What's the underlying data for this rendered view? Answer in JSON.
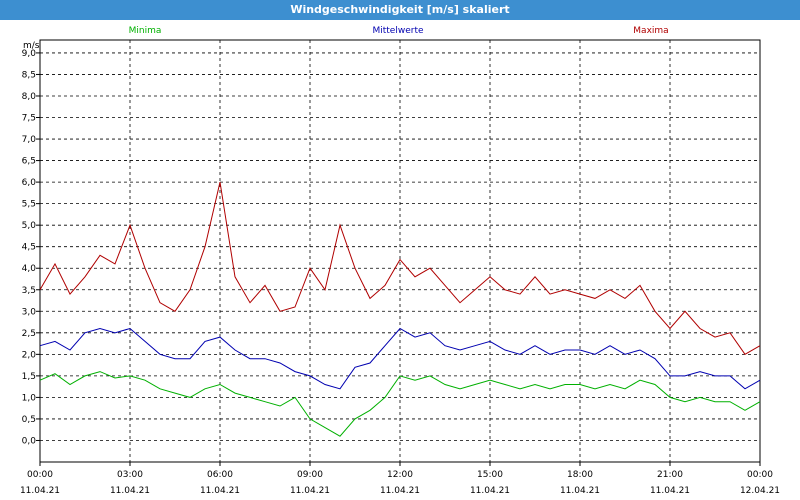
{
  "window": {
    "title": "Windgeschwindigkeit [m/s] skaliert"
  },
  "chart_data": {
    "type": "line",
    "title": "Windgeschwindigkeit [m/s] skaliert",
    "ylabel": "m/s",
    "xlabel": "",
    "ylim": [
      -0.5,
      9.3
    ],
    "grid": true,
    "legend_position": "top",
    "y_ticks": [
      {
        "value": 0.0,
        "label": "0,0"
      },
      {
        "value": 0.5,
        "label": "0,5"
      },
      {
        "value": 1.0,
        "label": "1,0"
      },
      {
        "value": 1.5,
        "label": "1,5"
      },
      {
        "value": 2.0,
        "label": "2,0"
      },
      {
        "value": 2.5,
        "label": "2,5"
      },
      {
        "value": 3.0,
        "label": "3,0"
      },
      {
        "value": 3.5,
        "label": "3,5"
      },
      {
        "value": 4.0,
        "label": "4,0"
      },
      {
        "value": 4.5,
        "label": "4,5"
      },
      {
        "value": 5.0,
        "label": "5,0"
      },
      {
        "value": 5.5,
        "label": "5,5"
      },
      {
        "value": 6.0,
        "label": "6,0"
      },
      {
        "value": 6.5,
        "label": "6,5"
      },
      {
        "value": 7.0,
        "label": "7,0"
      },
      {
        "value": 7.5,
        "label": "7,5"
      },
      {
        "value": 8.0,
        "label": "8,0"
      },
      {
        "value": 8.5,
        "label": "8,5"
      },
      {
        "value": 9.0,
        "label": "9,0"
      }
    ],
    "x_range_hours": [
      0,
      24
    ],
    "x_ticks": [
      {
        "hour": 0,
        "time": "00:00",
        "date": "11.04.21"
      },
      {
        "hour": 3,
        "time": "03:00",
        "date": "11.04.21"
      },
      {
        "hour": 6,
        "time": "06:00",
        "date": "11.04.21"
      },
      {
        "hour": 9,
        "time": "09:00",
        "date": "11.04.21"
      },
      {
        "hour": 12,
        "time": "12:00",
        "date": "11.04.21"
      },
      {
        "hour": 15,
        "time": "15:00",
        "date": "11.04.21"
      },
      {
        "hour": 18,
        "time": "18:00",
        "date": "11.04.21"
      },
      {
        "hour": 21,
        "time": "21:00",
        "date": "11.04.21"
      },
      {
        "hour": 24,
        "time": "00:00",
        "date": "12.04.21"
      }
    ],
    "x": [
      0,
      0.5,
      1,
      1.5,
      2,
      2.5,
      3,
      3.5,
      4,
      4.5,
      5,
      5.5,
      6,
      6.5,
      7,
      7.5,
      8,
      8.5,
      9,
      9.5,
      10,
      10.5,
      11,
      11.5,
      12,
      12.5,
      13,
      13.5,
      14,
      14.5,
      15,
      15.5,
      16,
      16.5,
      17,
      17.5,
      18,
      18.5,
      19,
      19.5,
      20,
      20.5,
      21,
      21.5,
      22,
      22.5,
      23,
      23.5,
      24
    ],
    "series": [
      {
        "name": "Minima",
        "color": "#00b000",
        "values": [
          1.4,
          1.55,
          1.3,
          1.5,
          1.6,
          1.45,
          1.5,
          1.4,
          1.2,
          1.1,
          1.0,
          1.2,
          1.3,
          1.1,
          1.0,
          0.9,
          0.8,
          1.0,
          0.5,
          0.3,
          0.1,
          0.5,
          0.7,
          1.0,
          1.5,
          1.4,
          1.5,
          1.3,
          1.2,
          1.3,
          1.4,
          1.3,
          1.2,
          1.3,
          1.2,
          1.3,
          1.3,
          1.2,
          1.3,
          1.2,
          1.4,
          1.3,
          1.0,
          0.9,
          1.0,
          0.9,
          0.9,
          0.7,
          0.9
        ]
      },
      {
        "name": "Mittelwerte",
        "color": "#0000b0",
        "values": [
          2.2,
          2.3,
          2.1,
          2.5,
          2.6,
          2.5,
          2.6,
          2.3,
          2.0,
          1.9,
          1.9,
          2.3,
          2.4,
          2.1,
          1.9,
          1.9,
          1.8,
          1.6,
          1.5,
          1.3,
          1.2,
          1.7,
          1.8,
          2.2,
          2.6,
          2.4,
          2.5,
          2.2,
          2.1,
          2.2,
          2.3,
          2.1,
          2.0,
          2.2,
          2.0,
          2.1,
          2.1,
          2.0,
          2.2,
          2.0,
          2.1,
          1.9,
          1.5,
          1.5,
          1.6,
          1.5,
          1.5,
          1.2,
          1.4
        ]
      },
      {
        "name": "Maxima",
        "color": "#b00000",
        "values": [
          3.5,
          4.1,
          3.4,
          3.8,
          4.3,
          4.1,
          5.0,
          4.0,
          3.2,
          3.0,
          3.5,
          4.5,
          6.0,
          3.8,
          3.2,
          3.6,
          3.0,
          3.1,
          4.0,
          3.5,
          5.0,
          4.0,
          3.3,
          3.6,
          4.2,
          3.8,
          4.0,
          3.6,
          3.2,
          3.5,
          3.8,
          3.5,
          3.4,
          3.8,
          3.4,
          3.5,
          3.4,
          3.3,
          3.5,
          3.3,
          3.6,
          3.0,
          2.6,
          3.0,
          2.6,
          2.4,
          2.5,
          2.0,
          2.2
        ]
      }
    ]
  }
}
